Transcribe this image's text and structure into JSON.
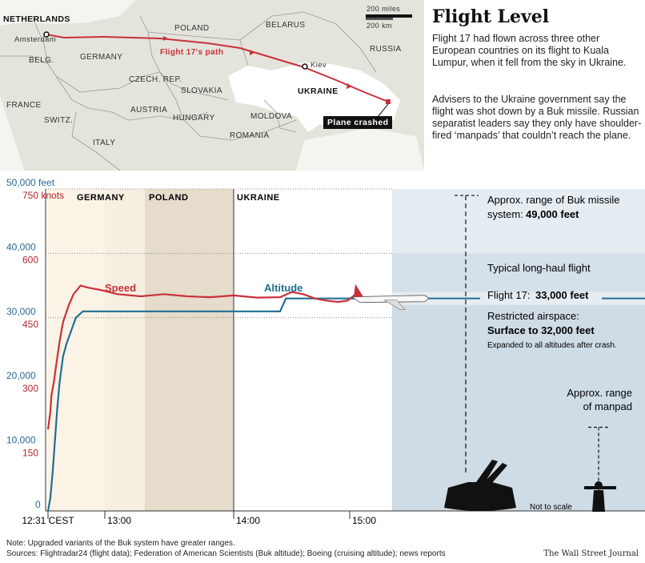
{
  "map": {
    "labels": {
      "netherlands": "NETHERLANDS",
      "amsterdam": "Amsterdam",
      "belg": "BELG.",
      "france": "FRANCE",
      "germany": "GERMANY",
      "poland": "POLAND",
      "belarus": "BELARUS",
      "russia": "RUSSIA",
      "czech": "CZECH. REP.",
      "slovakia": "SLOVAKIA",
      "austria": "AUSTRIA",
      "hungary": "HUNGARY",
      "switz": "SWITZ.",
      "italy": "ITALY",
      "moldova": "MOLDOVA",
      "romania": "ROMANIA",
      "ukraine": "UKRAINE",
      "kiev": "Kiev",
      "path": "Flight 17's path",
      "crashed": "Plane crashed"
    },
    "scale": {
      "miles": "200 miles",
      "km": "200 km"
    }
  },
  "article": {
    "headline": "Flight Level",
    "p1": "Flight 17 had flown across three other European countries on its flight to Kuala Lumpur, when it fell from the sky in Ukraine.",
    "p2": "Advisers to the Ukraine government say the flight was shot down by a Buk missile. Russian separatist leaders say they only have shoulder-fired ‘manpads’ that couldn’t reach the plane."
  },
  "chart_data": {
    "type": "line",
    "x_ticks": [
      "12:31 CEST",
      "13:00",
      "14:00",
      "15:00"
    ],
    "altitude_axis": {
      "unit": "feet",
      "ticks": [
        "50,000 feet",
        "40,000",
        "30,000",
        "20,000",
        "10,000",
        "0"
      ],
      "ylim": [
        0,
        50000
      ]
    },
    "speed_axis": {
      "unit": "knots",
      "ticks": [
        "750 knots",
        "600",
        "450",
        "300",
        "150"
      ],
      "ylim": [
        0,
        750
      ]
    },
    "regions": [
      {
        "name": "GERMANY"
      },
      {
        "name": "POLAND"
      },
      {
        "name": "UKRAINE"
      }
    ],
    "series": [
      {
        "name": "Altitude",
        "color": "#1f6f95",
        "unit": "feet",
        "points": [
          [
            0,
            0
          ],
          [
            0.02,
            2000
          ],
          [
            0.04,
            6000
          ],
          [
            0.06,
            11000
          ],
          [
            0.08,
            16000
          ],
          [
            0.1,
            20000
          ],
          [
            0.13,
            24000
          ],
          [
            0.16,
            26000
          ],
          [
            0.2,
            28000
          ],
          [
            0.24,
            30000
          ],
          [
            0.3,
            31000
          ],
          [
            0.5,
            31000
          ],
          [
            1.0,
            31000
          ],
          [
            1.8,
            31000
          ],
          [
            2.0,
            31000
          ],
          [
            2.05,
            33000
          ],
          [
            2.5,
            33000
          ],
          [
            2.65,
            33000
          ]
        ]
      },
      {
        "name": "Speed",
        "color": "#c8313a",
        "unit": "knots",
        "points": [
          [
            0,
            190
          ],
          [
            0.02,
            230
          ],
          [
            0.03,
            270
          ],
          [
            0.05,
            300
          ],
          [
            0.07,
            340
          ],
          [
            0.1,
            395
          ],
          [
            0.13,
            440
          ],
          [
            0.18,
            480
          ],
          [
            0.22,
            505
          ],
          [
            0.28,
            525
          ],
          [
            0.35,
            520
          ],
          [
            0.45,
            515
          ],
          [
            0.6,
            505
          ],
          [
            0.8,
            500
          ],
          [
            1.0,
            505
          ],
          [
            1.2,
            500
          ],
          [
            1.4,
            498
          ],
          [
            1.6,
            502
          ],
          [
            1.8,
            497
          ],
          [
            2.0,
            498
          ],
          [
            2.1,
            510
          ],
          [
            2.2,
            505
          ],
          [
            2.3,
            495
          ],
          [
            2.4,
            490
          ],
          [
            2.5,
            487
          ],
          [
            2.58,
            490
          ],
          [
            2.63,
            500
          ],
          [
            2.65,
            505
          ]
        ]
      }
    ],
    "reference": {
      "buk": {
        "label": "Approx. range of Buk missile system:",
        "value": "49,000 feet",
        "altitude": 49000
      },
      "longhaul": {
        "label": "Typical long-haul flight"
      },
      "flight17": {
        "label": "Flight 17:",
        "value": "33,000 feet",
        "altitude": 33000
      },
      "restricted": {
        "label": "Restricted airspace:",
        "value": "Surface to 32,000 feet",
        "altitude": 32000,
        "note": "Expanded to all altitudes after crash."
      },
      "manpad": {
        "label1": "Approx. range",
        "label2": "of manpad"
      },
      "scale_note": "Not to scale"
    }
  },
  "footer": {
    "note": "Note: Upgraded variants of the Buk system have greater ranges.",
    "sources": "Sources: Flightradar24 (flight data); Federation of American Scientists (Buk altitude); Boeing (cruising altitude); news reports",
    "credit": "The Wall Street Journal"
  }
}
